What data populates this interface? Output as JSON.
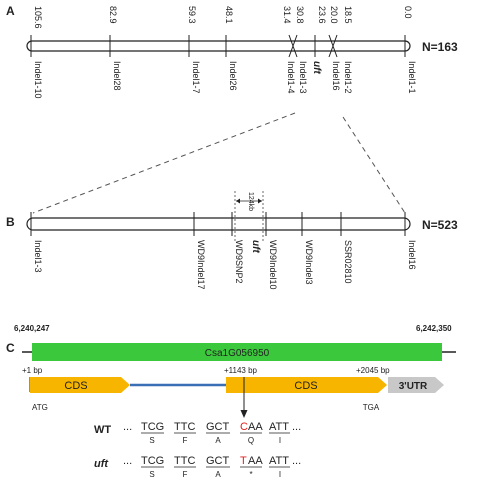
{
  "panel_a": {
    "letter": "A",
    "positions": [
      "105.6",
      "82.9",
      "59.3",
      "48.1",
      "31.4",
      "30.8",
      "23.6",
      "20.0",
      "18.5",
      "0.0"
    ],
    "markers": [
      "Indel1-10",
      "Indel28",
      "Indel1-7",
      "Indel26",
      "Indel1-4",
      "Indel1-3",
      "Indel16",
      "Indel1-2",
      "Indel1-1"
    ],
    "gene": "uft",
    "n": "N=163"
  },
  "panel_b": {
    "letter": "B",
    "interval": "124kb",
    "markers": [
      "Indel1-3",
      "WD9Indel17",
      "WD9SNP2",
      "WD9Indel10",
      "WD9Indel3",
      "SSR02810",
      "Indel16"
    ],
    "gene": "uft",
    "n": "N=523"
  },
  "panel_c": {
    "letter": "C",
    "coord_left": "6,240,247",
    "coord_right": "6,242,350",
    "gene_id": "Csa1G056950",
    "pos_1": "+1 bp",
    "pos_1143": "+1143 bp",
    "pos_2045": "+2045 bp",
    "cds_1": "CDS",
    "cds_2": "CDS",
    "utr": "3'UTR",
    "atg": "ATG",
    "tga": "TGA",
    "wt_label": "WT",
    "uft_label": "uft",
    "dots": "...",
    "wt_codons": [
      "TCG",
      "TTC",
      "GCT"
    ],
    "wt_mut_base": "C",
    "wt_mut_rest": "AA",
    "wt_last": "ATT",
    "wt_aa": [
      "S",
      "F",
      "A",
      "Q",
      "I"
    ],
    "uft_codons": [
      "TCG",
      "TTC",
      "GCT"
    ],
    "uft_mut_base": "T",
    "uft_mut_rest": "AA",
    "uft_last": "ATT",
    "uft_aa": [
      "S",
      "F",
      "A",
      "*",
      "I"
    ]
  },
  "colors": {
    "gene_bar": "#3cc83c",
    "cds": "#f7b500",
    "utr": "#c8c8c8",
    "intron": "#3a6fb5",
    "mutation": "#e02020"
  }
}
